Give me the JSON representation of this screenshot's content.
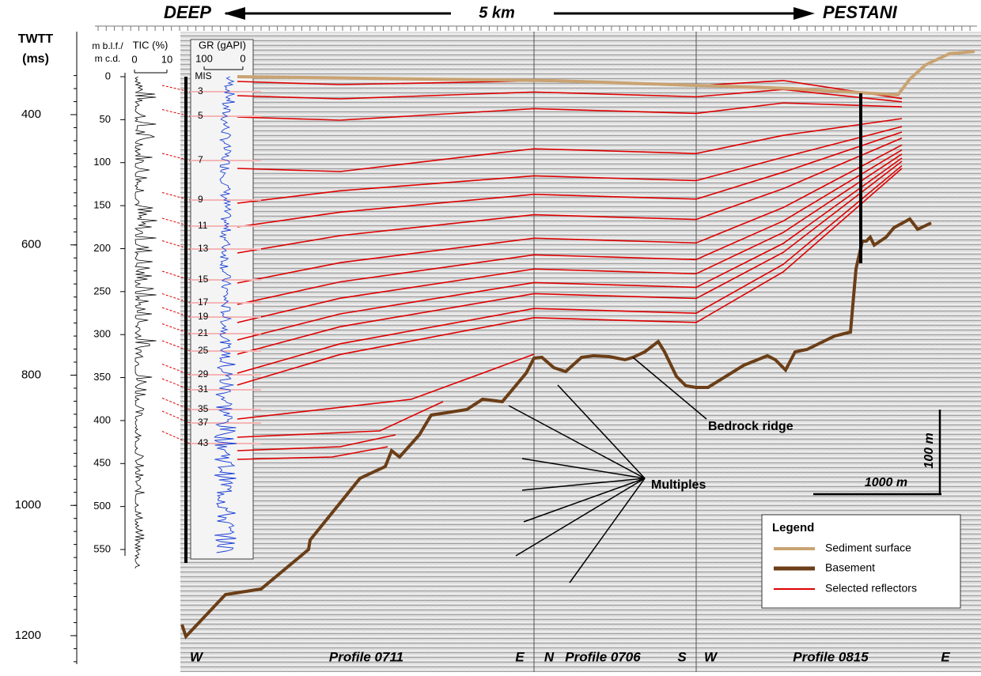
{
  "header": {
    "left": "DEEP",
    "center": "5 km",
    "right": "PESTANI"
  },
  "twtt_axis": {
    "title": [
      "TWTT",
      "(ms)"
    ],
    "ticks": [
      400,
      600,
      800,
      1000,
      1200
    ]
  },
  "depth_axis": {
    "title": [
      "m b.l.f./",
      "m c.d."
    ],
    "ticks": [
      0,
      50,
      100,
      150,
      200,
      250,
      300,
      350,
      400,
      450,
      500,
      550
    ]
  },
  "tic_axis": {
    "title": "TIC (%)",
    "ticks": [
      0,
      10
    ]
  },
  "gr_axis": {
    "title": "GR (gAPI)",
    "ticks": [
      100,
      0
    ]
  },
  "mis": {
    "title": "MIS",
    "labels": [
      "3",
      "5",
      "7",
      "9",
      "11",
      "13",
      "15",
      "17",
      "19",
      "21",
      "25",
      "29",
      "31",
      "35",
      "37",
      "43"
    ]
  },
  "profiles": [
    "W",
    "Profile 0711",
    "E",
    "N",
    "Profile 0706",
    "S",
    "W",
    "Profile 0815",
    "E"
  ],
  "annotations": {
    "bedrock": "Bedrock ridge",
    "multiples": "Multiples",
    "vscale": "100 m",
    "hscale": "1000 m"
  },
  "legend": {
    "title": "Legend",
    "items": [
      "Sediment surface",
      "Basement",
      "Selected reflectors"
    ]
  }
}
